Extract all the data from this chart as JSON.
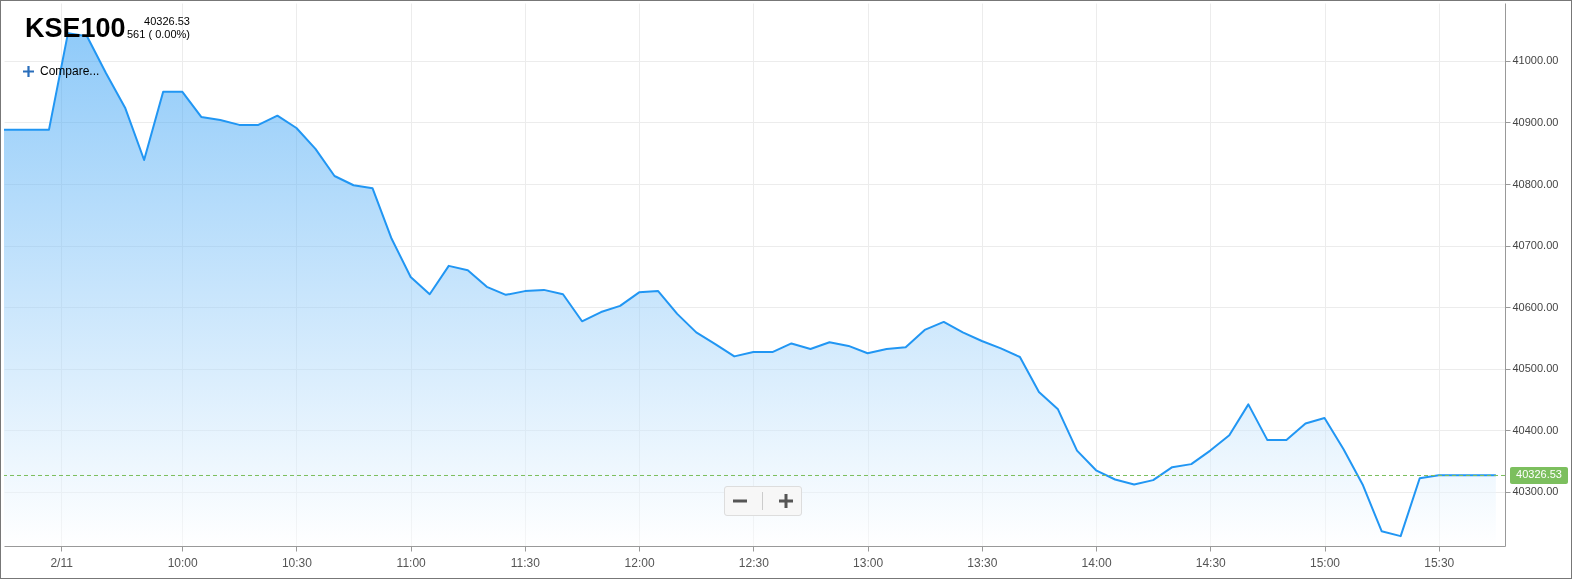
{
  "chart_data": {
    "type": "area",
    "title": "KSE100",
    "subtitle": "40326.53",
    "annotations": [
      "561 ( 0.00%)",
      "Compare..."
    ],
    "x": [
      9.22,
      9.4167,
      9.5,
      9.5833,
      9.6667,
      9.75,
      9.8333,
      9.9167,
      10.0,
      10.0833,
      10.1667,
      10.25,
      10.3333,
      10.4167,
      10.5,
      10.5833,
      10.6667,
      10.75,
      10.8333,
      10.9167,
      11.0,
      11.0833,
      11.1667,
      11.25,
      11.3333,
      11.4167,
      11.5,
      11.5833,
      11.6667,
      11.75,
      11.8333,
      11.9167,
      12.0,
      12.0833,
      12.1667,
      12.25,
      12.3333,
      12.4167,
      12.5,
      12.5833,
      12.6667,
      12.75,
      12.8333,
      12.9167,
      13.0,
      13.0833,
      13.1667,
      13.25,
      13.3333,
      13.4167,
      13.5,
      13.5833,
      13.6667,
      13.75,
      13.8333,
      13.9167,
      14.0,
      14.0833,
      14.1667,
      14.25,
      14.3333,
      14.4167,
      14.5,
      14.5833,
      14.6667,
      14.75,
      14.8333,
      14.9167,
      15.0,
      15.0833,
      15.1667,
      15.25,
      15.3333,
      15.4167,
      15.5,
      15.5833,
      15.6667,
      15.75
    ],
    "series": [
      {
        "color": "#2196f3",
        "values": [
          40888,
          40888,
          41045,
          41040,
          40980,
          40924,
          40839,
          40950,
          40950,
          40909,
          40904,
          40896,
          40896,
          40911,
          40891,
          40857,
          40813,
          40798,
          40793,
          40711,
          40649,
          40621,
          40667,
          40660,
          40633,
          40620,
          40626,
          40628,
          40621,
          40577,
          40592,
          40602,
          40624,
          40626,
          40589,
          40559,
          40540,
          40520,
          40527,
          40527,
          40541,
          40532,
          40543,
          40537,
          40525,
          40532,
          40535,
          40563,
          40576,
          40559,
          40545,
          40533,
          40519,
          40462,
          40434,
          40367,
          40335,
          40320,
          40312,
          40319,
          40340,
          40345,
          40367,
          40392,
          40442,
          40384,
          40384,
          40411,
          40420,
          40369,
          40312,
          40236,
          40228,
          40322,
          40327,
          40327,
          40327,
          40327
        ]
      }
    ],
    "xlim": [
      9.22,
      15.79
    ],
    "xticks": [
      {
        "value": 9.47,
        "label": "2/11"
      },
      {
        "value": 10,
        "label": "10:00"
      },
      {
        "value": 10.5,
        "label": "10:30"
      },
      {
        "value": 11,
        "label": "11:00"
      },
      {
        "value": 11.5,
        "label": "11:30"
      },
      {
        "value": 12,
        "label": "12:00"
      },
      {
        "value": 12.5,
        "label": "12:30"
      },
      {
        "value": 13,
        "label": "13:00"
      },
      {
        "value": 13.5,
        "label": "13:30"
      },
      {
        "value": 14,
        "label": "14:00"
      },
      {
        "value": 14.5,
        "label": "14:30"
      },
      {
        "value": 15,
        "label": "15:00"
      },
      {
        "value": 15.5,
        "label": "15:30"
      }
    ],
    "ylim": [
      40212,
      41094
    ],
    "yticks": [
      {
        "value": 40300,
        "label": "40300.00"
      },
      {
        "value": 40400,
        "label": "40400.00"
      },
      {
        "value": 40500,
        "label": "40500.00"
      },
      {
        "value": 40600,
        "label": "40600.00"
      },
      {
        "value": 40700,
        "label": "40700.00"
      },
      {
        "value": 40800,
        "label": "40800.00"
      },
      {
        "value": 40900,
        "label": "40900.00"
      },
      {
        "value": 41000,
        "label": "41000.00"
      }
    ],
    "ref_lines": [
      {
        "axis": "y",
        "value": 40326.53,
        "label": "40326.53",
        "color": "#7cbf5e",
        "line_style": "dashed"
      }
    ],
    "grid": true,
    "line_style": "solid"
  }
}
